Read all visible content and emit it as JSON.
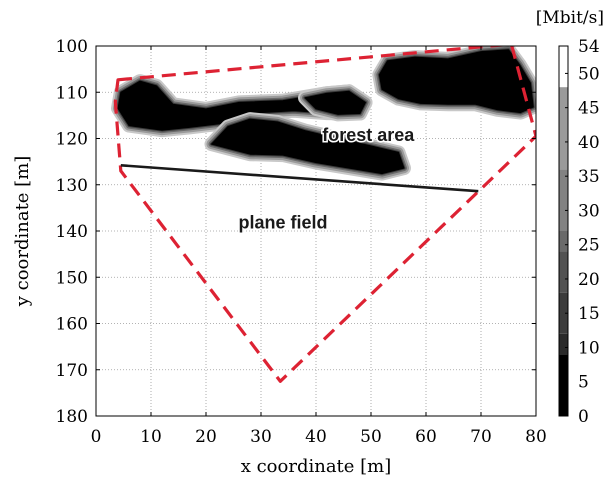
{
  "chart_data": {
    "type": "heatmap",
    "xlabel": "x coordinate [m]",
    "ylabel": "y coordinate [m]",
    "xlim": [
      0,
      80
    ],
    "ylim": [
      180,
      100
    ],
    "y_axis_inverted": true,
    "x_ticks": [
      0,
      10,
      20,
      30,
      40,
      50,
      60,
      70,
      80
    ],
    "y_ticks": [
      100,
      110,
      120,
      130,
      140,
      150,
      160,
      170,
      180
    ],
    "grid": true,
    "colorbar": {
      "unit": "[Mbit/s]",
      "ticks": [
        0,
        5,
        10,
        15,
        20,
        25,
        30,
        35,
        40,
        45,
        50,
        54
      ],
      "range": [
        0,
        54
      ],
      "levels": [
        {
          "from": 0,
          "to": 9,
          "color": "#000000"
        },
        {
          "from": 9,
          "to": 12,
          "color": "#2a2a2a"
        },
        {
          "from": 12,
          "to": 18,
          "color": "#3c3c3c"
        },
        {
          "from": 18,
          "to": 24,
          "color": "#525252"
        },
        {
          "from": 24,
          "to": 27,
          "color": "#6a6a6a"
        },
        {
          "from": 27,
          "to": 36,
          "color": "#828282"
        },
        {
          "from": 36,
          "to": 48,
          "color": "#9a9a9a"
        },
        {
          "from": 48,
          "to": 54,
          "color": "#ffffff"
        }
      ]
    },
    "annotations": [
      {
        "text": "forest area",
        "x": 49.5,
        "y": 120.5
      },
      {
        "text": "plane field",
        "x": 34,
        "y": 139.5
      }
    ],
    "boundary_polygon": {
      "style": "dashed",
      "color": "#dd2233",
      "points": [
        [
          4,
          107.3
        ],
        [
          75.5,
          99.6
        ],
        [
          80,
          119.5
        ],
        [
          33.5,
          172.5
        ],
        [
          4.5,
          127
        ],
        [
          3.5,
          112
        ]
      ]
    },
    "measurement_path": {
      "color": "#1a1a1a",
      "points": [
        [
          4.5,
          125.8
        ],
        [
          69.5,
          131.4
        ]
      ]
    },
    "low_throughput_regions": [
      {
        "level": 0,
        "points": [
          [
            4.5,
            110
          ],
          [
            8,
            107.6
          ],
          [
            11,
            108.6
          ],
          [
            14,
            112.6
          ],
          [
            20,
            113.6
          ],
          [
            26,
            112.2
          ],
          [
            34,
            111.8
          ],
          [
            42,
            110.2
          ],
          [
            46,
            109.8
          ],
          [
            49,
            112.2
          ],
          [
            48,
            114.6
          ],
          [
            42,
            114.5
          ],
          [
            36,
            114
          ],
          [
            30,
            114.4
          ],
          [
            24,
            116.6
          ],
          [
            17,
            117.6
          ],
          [
            12,
            118.2
          ],
          [
            6,
            117.2
          ],
          [
            4,
            113.5
          ]
        ]
      },
      {
        "level": 0,
        "points": [
          [
            21,
            121.2
          ],
          [
            24,
            117.4
          ],
          [
            28,
            115.8
          ],
          [
            33,
            116.4
          ],
          [
            38,
            118.3
          ],
          [
            44,
            120
          ],
          [
            50,
            121.6
          ],
          [
            55,
            123
          ],
          [
            56,
            126.4
          ],
          [
            52,
            127.6
          ],
          [
            46,
            126.4
          ],
          [
            40,
            125.2
          ],
          [
            34,
            123.6
          ],
          [
            28,
            123.4
          ]
        ]
      },
      {
        "level": 0,
        "points": [
          [
            53,
            103.2
          ],
          [
            58,
            102.4
          ],
          [
            64,
            102.8
          ],
          [
            70,
            101.2
          ],
          [
            75,
            100.8
          ],
          [
            77,
            104
          ],
          [
            79,
            108
          ],
          [
            79.5,
            113.2
          ],
          [
            77.2,
            114.4
          ],
          [
            73,
            113.8
          ],
          [
            69,
            112.6
          ],
          [
            64,
            112.6
          ],
          [
            59,
            112.4
          ],
          [
            55,
            111.4
          ],
          [
            52,
            109.4
          ],
          [
            51.5,
            106.2
          ]
        ]
      },
      {
        "level": 0,
        "points": [
          [
            38,
            111.2
          ],
          [
            42,
            110.2
          ],
          [
            46,
            109.8
          ],
          [
            49,
            112.2
          ],
          [
            48,
            114.6
          ],
          [
            44,
            114.8
          ],
          [
            40,
            113.6
          ]
        ]
      }
    ]
  }
}
